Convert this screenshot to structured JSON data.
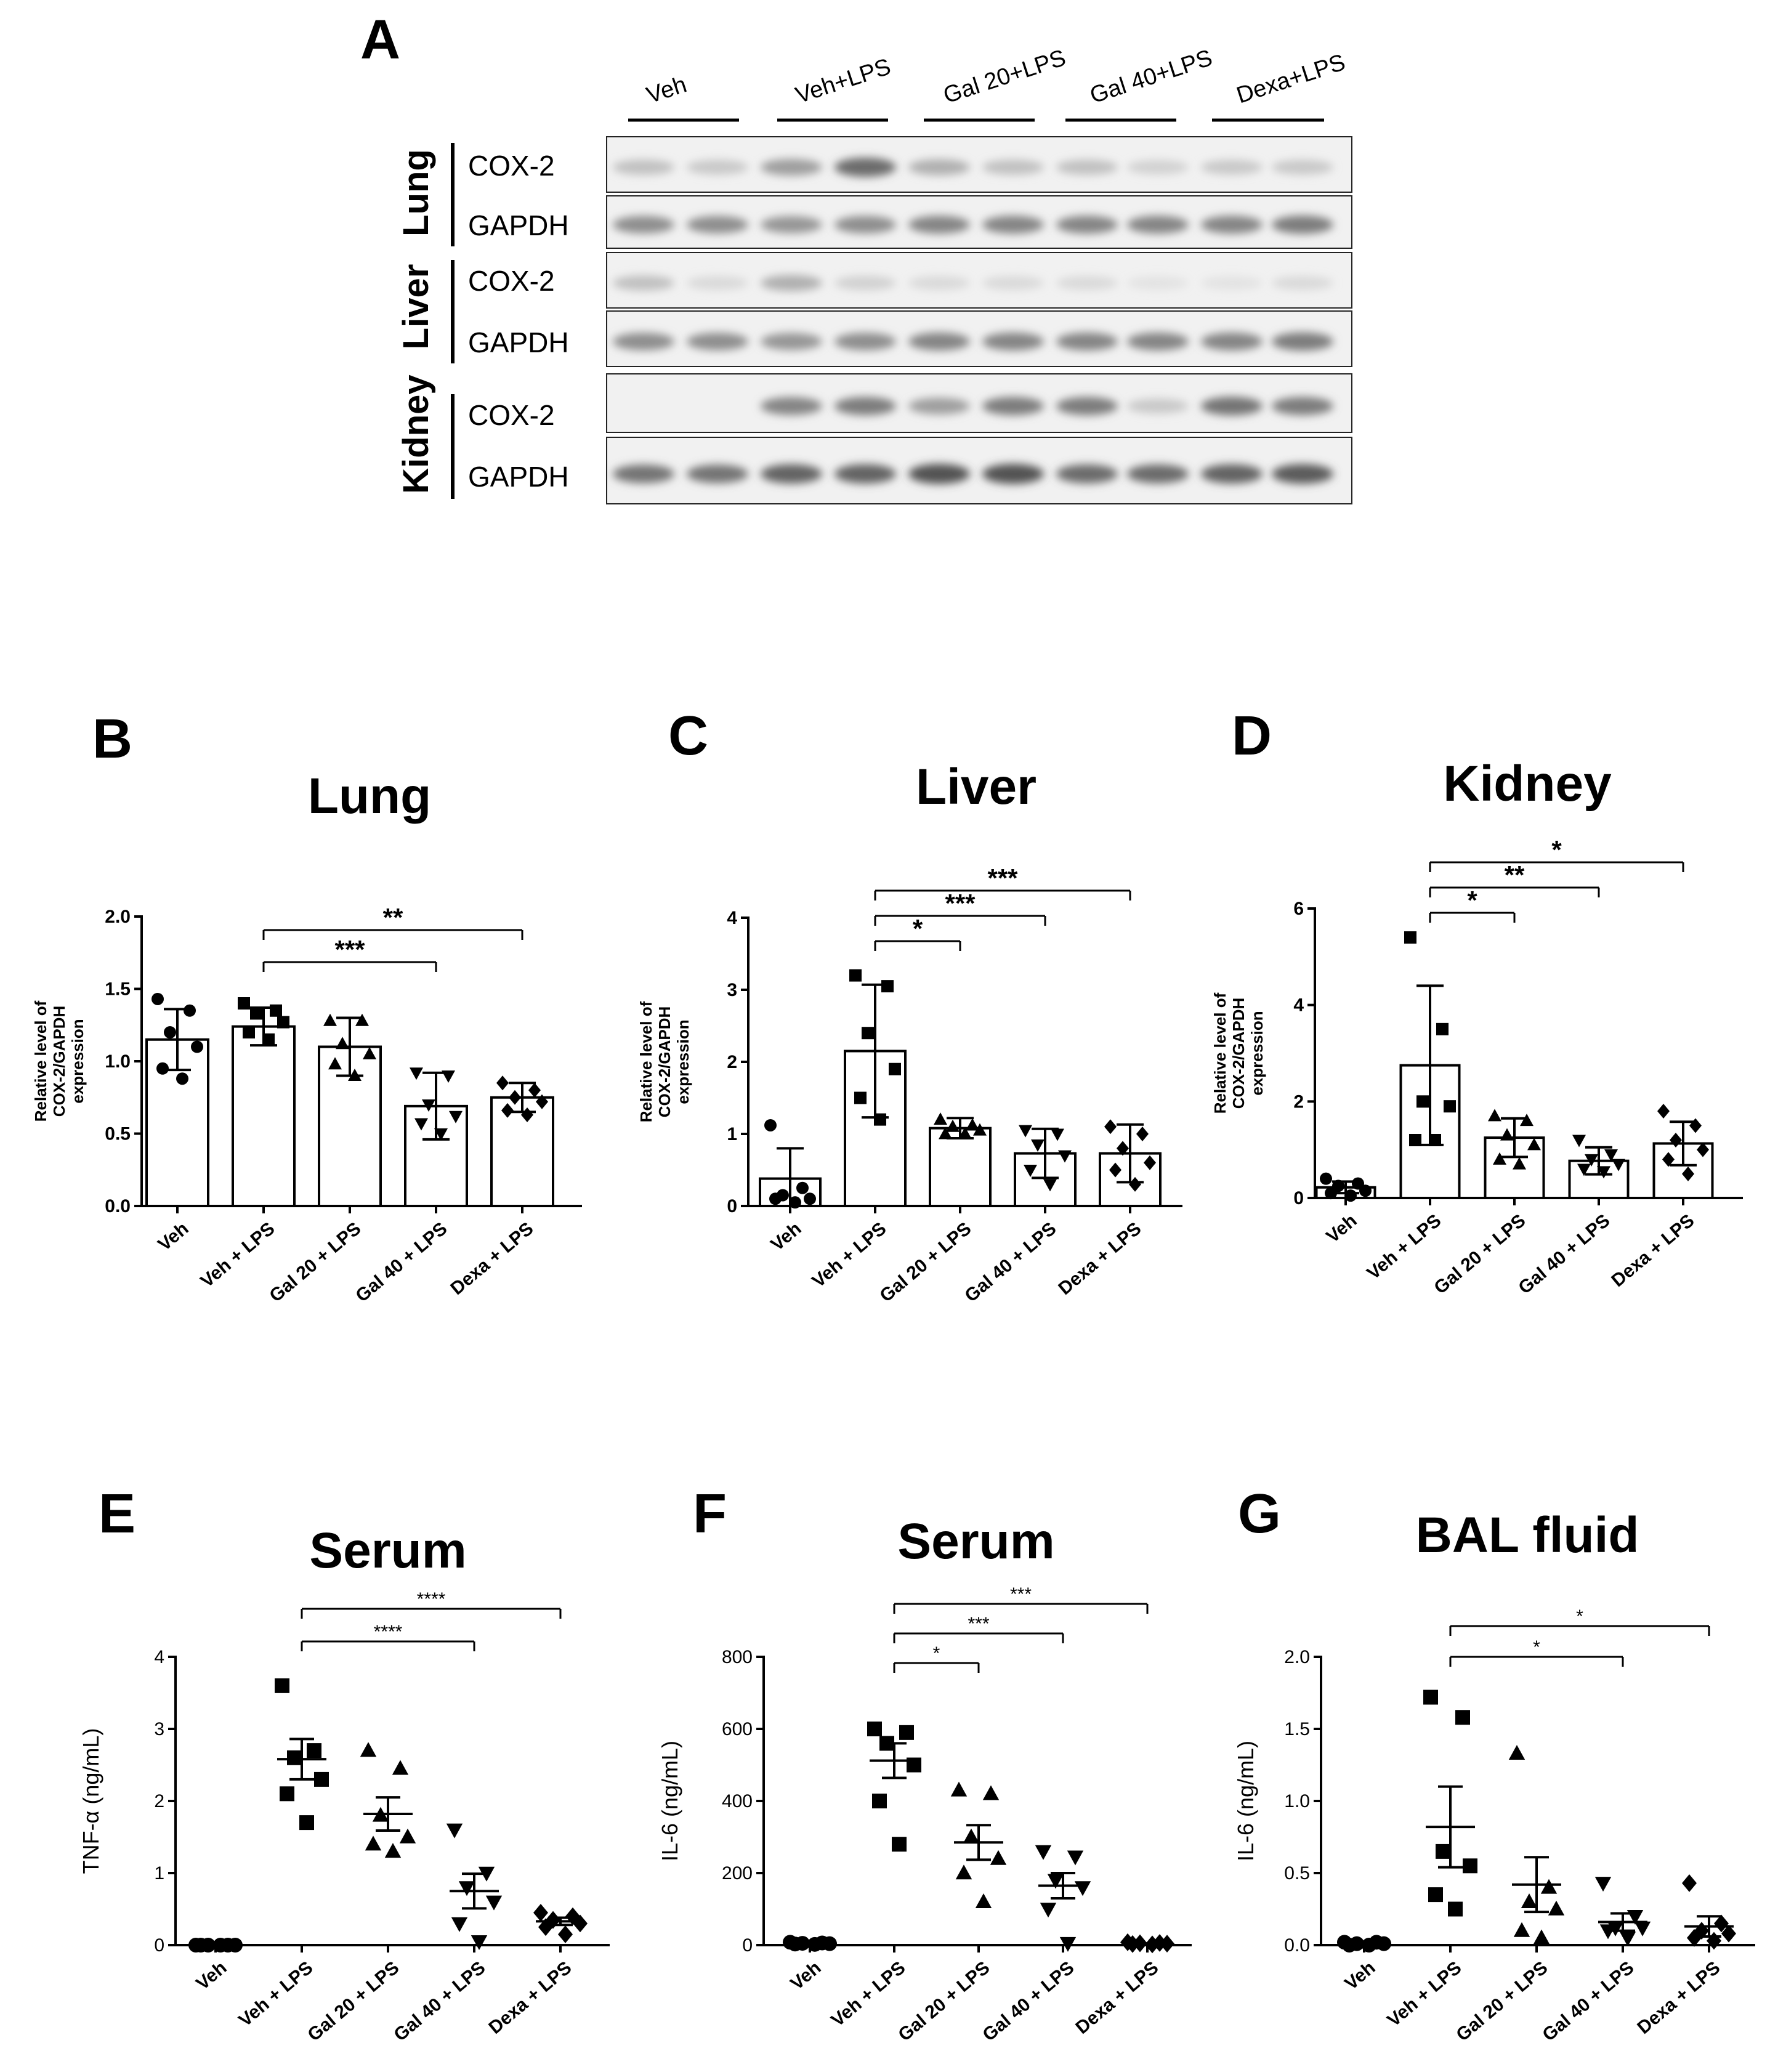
{
  "blot": {
    "panel_letter": "A",
    "lanes": [
      "Veh",
      "Veh+LPS",
      "Gal 20+LPS",
      "Gal 40+LPS",
      "Dexa+LPS"
    ],
    "tissues": [
      {
        "name": "Lung",
        "proteins": [
          "COX-2",
          "GAPDH"
        ]
      },
      {
        "name": "Liver",
        "proteins": [
          "COX-2",
          "GAPDH"
        ]
      },
      {
        "name": "Kidney",
        "proteins": [
          "COX-2",
          "GAPDH"
        ]
      }
    ]
  },
  "chart_data": [
    {
      "id": "B",
      "panel_letter": "B",
      "type": "bar",
      "title": "Lung",
      "ylabel": "Relative level of COX-2/GAPDH expression",
      "ylabel_lines": [
        "Relative level of",
        "COX-2/GAPDH",
        "expression"
      ],
      "ylim": [
        0,
        2.0
      ],
      "yticks": [
        "0.0",
        "0.5",
        "1.0",
        "1.5",
        "2.0"
      ],
      "ytick_values": [
        0,
        0.5,
        1.0,
        1.5,
        2.0
      ],
      "categories": [
        "Veh",
        "Veh + LPS",
        "Gal 20 + LPS",
        "Gal 40 + LPS",
        "Dexa + LPS"
      ],
      "values": [
        1.15,
        1.24,
        1.1,
        0.69,
        0.75
      ],
      "error": [
        0.21,
        0.13,
        0.2,
        0.23,
        0.1
      ],
      "points": [
        [
          1.43,
          1.35,
          1.2,
          1.1,
          0.95,
          0.88
        ],
        [
          1.4,
          1.35,
          1.33,
          1.27,
          1.2,
          1.15
        ],
        [
          1.28,
          1.28,
          1.12,
          1.05,
          0.98,
          0.9
        ],
        [
          0.92,
          0.9,
          0.7,
          0.62,
          0.57,
          0.5
        ],
        [
          0.85,
          0.8,
          0.75,
          0.72,
          0.66,
          0.63
        ]
      ],
      "marker": [
        "circle",
        "square",
        "triangle-up",
        "triangle-down",
        "diamond"
      ],
      "significance": [
        {
          "from": 1,
          "to": 3,
          "label": "***"
        },
        {
          "from": 1,
          "to": 4,
          "label": "**"
        }
      ]
    },
    {
      "id": "C",
      "panel_letter": "C",
      "type": "bar",
      "title": "Liver",
      "ylabel": "Relative level of COX-2/GAPDH expression",
      "ylabel_lines": [
        "Relative level of",
        "COX-2/GAPDH",
        "expression"
      ],
      "ylim": [
        0,
        4
      ],
      "yticks": [
        "0",
        "1",
        "2",
        "3",
        "4"
      ],
      "ytick_values": [
        0,
        1,
        2,
        3,
        4
      ],
      "categories": [
        "Veh",
        "Veh + LPS",
        "Gal 20 + LPS",
        "Gal 40 + LPS",
        "Dexa + LPS"
      ],
      "values": [
        0.38,
        2.15,
        1.08,
        0.73,
        0.73
      ],
      "error": [
        0.42,
        0.92,
        0.14,
        0.34,
        0.4
      ],
      "points": [
        [
          1.12,
          0.25,
          0.15,
          0.1,
          0.1,
          0.05
        ],
        [
          3.2,
          3.05,
          2.4,
          1.9,
          1.5,
          1.2
        ],
        [
          1.2,
          1.12,
          1.1,
          1.05,
          1.0,
          1.0
        ],
        [
          1.05,
          1.0,
          0.85,
          0.7,
          0.5,
          0.3
        ],
        [
          1.1,
          1.0,
          0.8,
          0.6,
          0.5,
          0.3
        ]
      ],
      "marker": [
        "circle",
        "square",
        "triangle-up",
        "triangle-down",
        "diamond"
      ],
      "significance": [
        {
          "from": 1,
          "to": 2,
          "label": "*"
        },
        {
          "from": 1,
          "to": 3,
          "label": "***"
        },
        {
          "from": 1,
          "to": 4,
          "label": "***"
        }
      ]
    },
    {
      "id": "D",
      "panel_letter": "D",
      "type": "bar",
      "title": "Kidney",
      "ylabel": "Relative level of COX-2/GAPDH expression",
      "ylabel_lines": [
        "Relative level of",
        "COX-2/GAPDH",
        "expression"
      ],
      "ylim": [
        0,
        6
      ],
      "yticks": [
        "0",
        "2",
        "4",
        "6"
      ],
      "ytick_values": [
        0,
        2,
        4,
        6
      ],
      "categories": [
        "Veh",
        "Veh + LPS",
        "Gal 20 + LPS",
        "Gal 40 + LPS",
        "Dexa + LPS"
      ],
      "values": [
        0.22,
        2.75,
        1.25,
        0.77,
        1.13
      ],
      "error": [
        0.12,
        1.65,
        0.4,
        0.28,
        0.45
      ],
      "points": [
        [
          0.4,
          0.3,
          0.25,
          0.15,
          0.1,
          0.05
        ],
        [
          5.4,
          3.5,
          2.0,
          1.9,
          1.2,
          1.2
        ],
        [
          1.7,
          1.6,
          1.3,
          1.1,
          0.8,
          0.7
        ],
        [
          1.2,
          0.9,
          0.8,
          0.7,
          0.6,
          0.55
        ],
        [
          1.8,
          1.5,
          1.2,
          1.0,
          0.8,
          0.5
        ]
      ],
      "marker": [
        "circle",
        "square",
        "triangle-up",
        "triangle-down",
        "diamond"
      ],
      "significance": [
        {
          "from": 1,
          "to": 2,
          "label": "*"
        },
        {
          "from": 1,
          "to": 3,
          "label": "**"
        },
        {
          "from": 1,
          "to": 4,
          "label": "*"
        }
      ]
    },
    {
      "id": "E",
      "panel_letter": "E",
      "type": "scatter",
      "title": "Serum",
      "ylabel": "TNF-α (ng/mL)",
      "ylim": [
        0,
        4
      ],
      "yticks": [
        "0",
        "1",
        "2",
        "3",
        "4"
      ],
      "ytick_values": [
        0,
        1,
        2,
        3,
        4
      ],
      "categories": [
        "Veh",
        "Veh + LPS",
        "Gal 20 + LPS",
        "Gal 40 + LPS",
        "Dexa + LPS"
      ],
      "mean": [
        0.0,
        2.58,
        1.82,
        0.75,
        0.33
      ],
      "sem": [
        0.0,
        0.28,
        0.23,
        0.24,
        0.05
      ],
      "points": [
        [
          0,
          0,
          0,
          0,
          0,
          0
        ],
        [
          3.6,
          2.7,
          2.6,
          2.3,
          2.1,
          1.7
        ],
        [
          2.7,
          2.45,
          1.8,
          1.5,
          1.4,
          1.3
        ],
        [
          1.6,
          1.0,
          0.8,
          0.6,
          0.3,
          0.05
        ],
        [
          0.45,
          0.4,
          0.35,
          0.3,
          0.25,
          0.15
        ]
      ],
      "marker": [
        "circle",
        "square",
        "triangle-up",
        "triangle-down",
        "diamond"
      ],
      "significance": [
        {
          "from": 1,
          "to": 3,
          "label": "****"
        },
        {
          "from": 1,
          "to": 4,
          "label": "****"
        }
      ]
    },
    {
      "id": "F",
      "panel_letter": "F",
      "type": "scatter",
      "title": "Serum",
      "ylabel": "IL-6  (ng/mL)",
      "ylim": [
        0,
        800
      ],
      "yticks": [
        "0",
        "200",
        "400",
        "600",
        "800"
      ],
      "ytick_values": [
        0,
        200,
        400,
        600,
        800
      ],
      "categories": [
        "Veh",
        "Veh + LPS",
        "Gal 20 + LPS",
        "Gal 40 + LPS",
        "Dexa + LPS"
      ],
      "mean": [
        5,
        512,
        285,
        165,
        5
      ],
      "sem": [
        2,
        48,
        48,
        35,
        2
      ],
      "points": [
        [
          8,
          6,
          5,
          4,
          3,
          2
        ],
        [
          600,
          590,
          560,
          500,
          400,
          280
        ],
        [
          430,
          420,
          300,
          240,
          200,
          120
        ],
        [
          260,
          245,
          180,
          160,
          100,
          5
        ],
        [
          8,
          6,
          5,
          4,
          3,
          2
        ]
      ],
      "marker": [
        "circle",
        "square",
        "triangle-up",
        "triangle-down",
        "diamond"
      ],
      "significance": [
        {
          "from": 1,
          "to": 2,
          "label": "*"
        },
        {
          "from": 1,
          "to": 3,
          "label": "***"
        },
        {
          "from": 1,
          "to": 4,
          "label": "***"
        }
      ]
    },
    {
      "id": "G",
      "panel_letter": "G",
      "type": "scatter",
      "title": "BAL fluid",
      "ylabel": "IL-6  (ng/mL)",
      "ylim": [
        0,
        2.0
      ],
      "yticks": [
        "0.0",
        "0.5",
        "1.0",
        "1.5",
        "2.0"
      ],
      "ytick_values": [
        0,
        0.5,
        1.0,
        1.5,
        2.0
      ],
      "categories": [
        "Veh",
        "Veh + LPS",
        "Gal 20 + LPS",
        "Gal 40 + LPS",
        "Dexa + LPS"
      ],
      "mean": [
        0.01,
        0.82,
        0.42,
        0.16,
        0.13
      ],
      "sem": [
        0.005,
        0.28,
        0.19,
        0.06,
        0.07
      ],
      "points": [
        [
          0.02,
          0.02,
          0.01,
          0.01,
          0.0,
          0.0
        ],
        [
          1.72,
          1.58,
          0.65,
          0.55,
          0.35,
          0.25
        ],
        [
          1.33,
          0.4,
          0.3,
          0.25,
          0.1,
          0.05
        ],
        [
          0.43,
          0.2,
          0.12,
          0.12,
          0.1,
          0.05
        ],
        [
          0.43,
          0.15,
          0.1,
          0.08,
          0.05,
          0.03
        ]
      ],
      "marker": [
        "circle",
        "square",
        "triangle-up",
        "triangle-down",
        "diamond"
      ],
      "significance": [
        {
          "from": 1,
          "to": 3,
          "label": "*"
        },
        {
          "from": 1,
          "to": 4,
          "label": "*"
        }
      ]
    }
  ]
}
